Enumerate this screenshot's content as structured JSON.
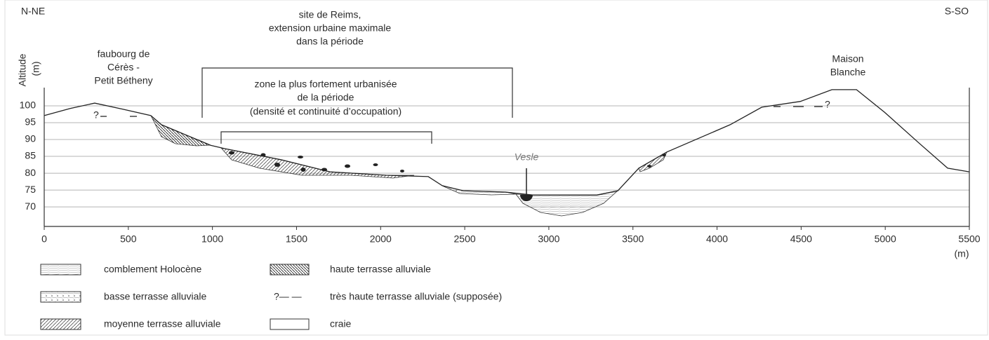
{
  "orientation": {
    "left": "N-NE",
    "right": "S-SO"
  },
  "axes": {
    "y_label": "Altitude",
    "y_unit": "(m)",
    "x_unit": "(m)",
    "xlim": [
      0,
      5500
    ],
    "xticks": [
      0,
      500,
      1000,
      1500,
      2000,
      2500,
      3000,
      3500,
      4000,
      4500,
      5000,
      5500
    ],
    "ylim": [
      64.2,
      105.4
    ],
    "yticks": [
      70,
      75,
      80,
      85,
      90,
      95,
      100
    ]
  },
  "profile": {
    "x": [
      0,
      154,
      300,
      467,
      634,
      697,
      989,
      1073,
      1407,
      1699,
      2033,
      2283,
      2366,
      2492,
      2742,
      2909,
      3285,
      3410,
      3535,
      3702,
      3911,
      4078,
      4266,
      4495,
      4683,
      4829,
      4996,
      5204,
      5371,
      5500
    ],
    "y": [
      97.1,
      99.2,
      100.8,
      99,
      97.1,
      94.4,
      88.3,
      87.3,
      84,
      80.4,
      79.4,
      79,
      76.3,
      74.8,
      74.4,
      73.5,
      73.5,
      74.8,
      81.5,
      86.3,
      90.8,
      94.4,
      99.6,
      101.3,
      104.8,
      104.8,
      98.1,
      88.8,
      81.5,
      80.4
    ]
  },
  "annotations": [
    {
      "lines": [
        "faubourg de",
        "Cérès -",
        "Petit Bétheny"
      ]
    },
    {
      "lines": [
        "site de Reims,",
        "extension urbaine maximale",
        "dans la période"
      ]
    },
    {
      "lines": [
        "zone la plus fortement urbanisée",
        "de la période",
        "(densité et continuité d’occupation)"
      ]
    },
    {
      "lines": [
        "Maison",
        "Blanche"
      ]
    },
    {
      "lines": [
        "Vesle"
      ]
    }
  ],
  "question_mark": "?",
  "legend": [
    {
      "label": "comblement Holocène"
    },
    {
      "label": "basse terrasse alluviale"
    },
    {
      "label": "moyenne terrasse alluviale"
    },
    {
      "label": "haute terrasse alluviale"
    },
    {
      "symbol": "?— —",
      "label": "très haute terrasse alluviale (supposée)"
    },
    {
      "label": "craie"
    }
  ]
}
